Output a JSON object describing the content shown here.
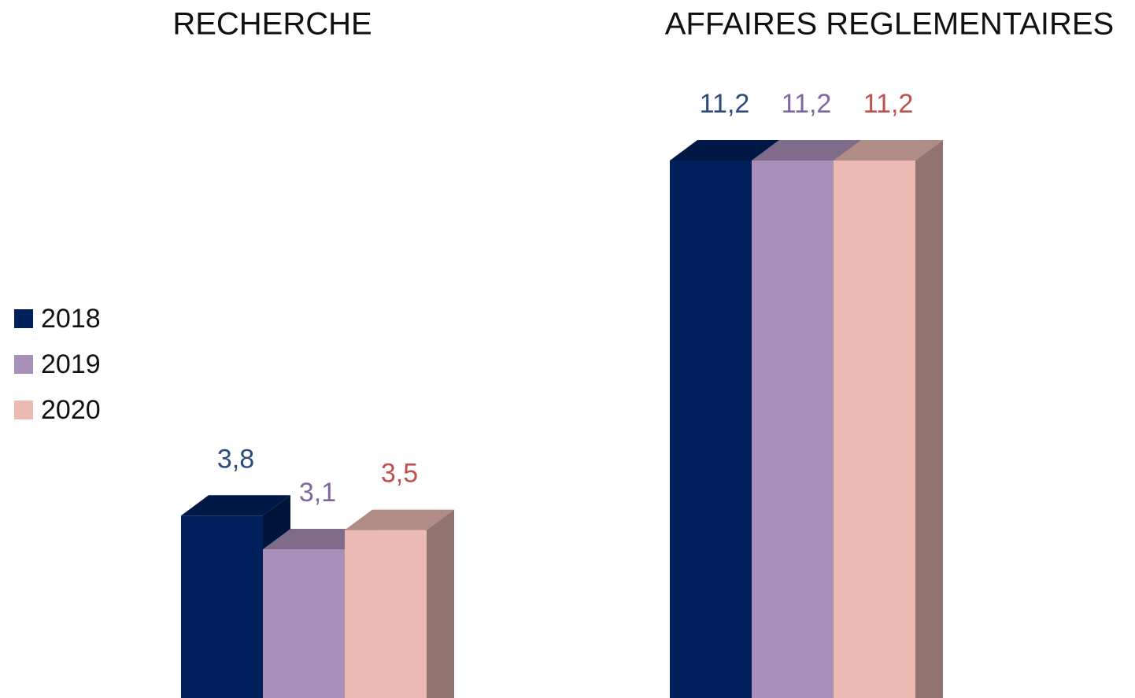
{
  "chart_data": {
    "type": "bar",
    "categories": [
      "RECHERCHE",
      "AFFAIRES REGLEMENTAIRES"
    ],
    "series": [
      {
        "name": "2018",
        "color": "#00205c",
        "label_color": "#2e4a7d",
        "values": [
          3.8,
          11.2
        ],
        "value_labels": [
          "3,8",
          "11,2"
        ]
      },
      {
        "name": "2019",
        "color": "#a890b8",
        "label_color": "#7f68a0",
        "values": [
          3.1,
          11.2
        ],
        "value_labels": [
          "3,1",
          "11,2"
        ]
      },
      {
        "name": "2020",
        "color": "#eabab3",
        "label_color": "#c0504d",
        "values": [
          3.5,
          11.2
        ],
        "value_labels": [
          "3,5",
          "11,2"
        ]
      }
    ],
    "legend": "left",
    "bar_style": "3d"
  }
}
